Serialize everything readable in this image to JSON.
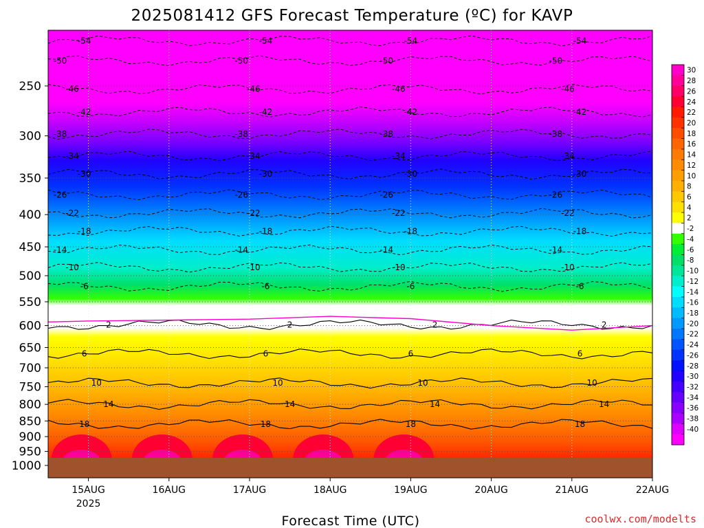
{
  "title": "2025081412 GFS Forecast Temperature (ºC) for KAVP",
  "xlabel": "Forecast Time (UTC)",
  "credit": "coolwx.com/modelts",
  "chart_data": {
    "type": "heatmap",
    "title": "2025081412 GFS Forecast Temperature (ºC) for KAVP",
    "xlabel": "Forecast Time (UTC)",
    "ylabel": "",
    "y_axis": "pressure (hPa), inverted log scale",
    "ylim": [
      1000,
      200
    ],
    "y_ticks": [
      250,
      300,
      350,
      400,
      450,
      500,
      550,
      600,
      650,
      700,
      750,
      800,
      850,
      900,
      950,
      1000
    ],
    "xlim": [
      "2025-08-14T12",
      "2025-08-22T00"
    ],
    "x_ticks": [
      {
        "label": "15AUG",
        "sublabel": "2025",
        "time": "2025-08-15T00"
      },
      {
        "label": "16AUG",
        "time": "2025-08-16T00"
      },
      {
        "label": "17AUG",
        "time": "2025-08-17T00"
      },
      {
        "label": "18AUG",
        "time": "2025-08-18T00"
      },
      {
        "label": "19AUG",
        "time": "2025-08-19T00"
      },
      {
        "label": "20AUG",
        "time": "2025-08-20T00"
      },
      {
        "label": "21AUG",
        "time": "2025-08-21T00"
      },
      {
        "label": "22AUG",
        "time": "2025-08-22T00"
      }
    ],
    "grid": true,
    "colorbar": {
      "placement": "right",
      "levels": [
        30,
        28,
        26,
        24,
        22,
        20,
        18,
        16,
        14,
        12,
        10,
        8,
        6,
        4,
        2,
        -2,
        -4,
        -6,
        -8,
        -10,
        -12,
        -14,
        -16,
        -18,
        -20,
        -22,
        -24,
        -26,
        -28,
        -30,
        -32,
        -34,
        -36,
        -38,
        -40
      ],
      "colors": [
        "#ff00cc",
        "#ff0099",
        "#ff0066",
        "#ff0033",
        "#ff1a00",
        "#ff3300",
        "#ff4d00",
        "#ff6600",
        "#ff7a00",
        "#ff8c00",
        "#ff9e00",
        "#ffb000",
        "#ffc800",
        "#ffe000",
        "#ffff00",
        "#ffffff",
        "#33ff00",
        "#00ee33",
        "#00e066",
        "#00e699",
        "#00eecc",
        "#00ffff",
        "#00ddff",
        "#00bbff",
        "#0099ff",
        "#0077ff",
        "#0055ff",
        "#0033ff",
        "#0011ff",
        "#2200ff",
        "#4400ff",
        "#6600ff",
        "#8800ff",
        "#aa00ff",
        "#dd00ff",
        "#ff00ff"
      ]
    },
    "isotherms_dashed": [
      -54,
      -50,
      -46,
      -42,
      -38,
      -34,
      -30,
      -26,
      -22,
      -18,
      -14,
      -10,
      -6
    ],
    "isotherms_solid": [
      2,
      6,
      10,
      14,
      18
    ],
    "freezing_line_color": "#ff00cc",
    "ground_color": "#a0522d",
    "series": [
      {
        "x": [
          "2025-08-14T12",
          "2025-08-15T00",
          "2025-08-16T00",
          "2025-08-17T00",
          "2025-08-18T00",
          "2025-08-19T00",
          "2025-08-20T00",
          "2025-08-21T00",
          "2025-08-22T00"
        ],
        "freezing_level_hPa": [
          592,
          590,
          588,
          586,
          580,
          585,
          600,
          610,
          600
        ]
      }
    ]
  }
}
